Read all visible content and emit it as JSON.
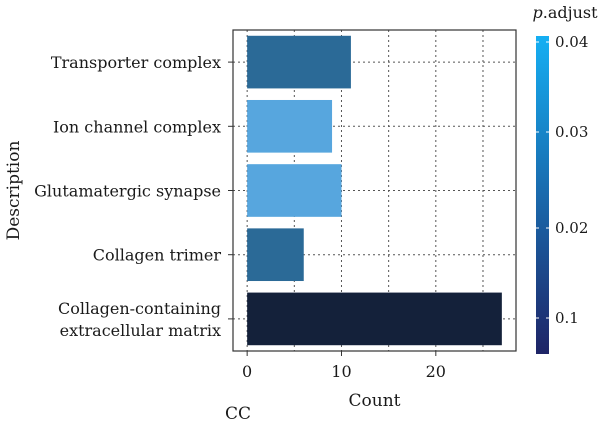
{
  "chart_data": {
    "type": "bar",
    "orientation": "horizontal",
    "categories": [
      "Transporter complex",
      "Ion channel complex",
      "Glutamatergic synapse",
      "Collagen trimer",
      "Collagen-containing extracellular matrix"
    ],
    "category_lines": [
      [
        "Transporter complex"
      ],
      [
        "Ion channel complex"
      ],
      [
        "Glutamatergic synapse"
      ],
      [
        "Collagen trimer"
      ],
      [
        "Collagen-containing",
        "extracellular matrix"
      ]
    ],
    "values": [
      11,
      9,
      10,
      6,
      27
    ],
    "bar_colors": [
      "#2b6a97",
      "#57a6de",
      "#57a6de",
      "#2b6a97",
      "#14213a"
    ],
    "xlabel": "Count",
    "ylabel": "Description",
    "xlim": [
      -1.5,
      28.5
    ],
    "xticks": [
      0,
      10,
      20
    ],
    "grid": true,
    "legend": {
      "title_italic": "p",
      "title_rest": ".adjust",
      "placement": "right",
      "ticks": [
        "0.04",
        "0.03",
        "0.02",
        "0.1"
      ],
      "colors": [
        "#15aff3",
        "#1e2466"
      ]
    }
  },
  "panel_label": "CC"
}
